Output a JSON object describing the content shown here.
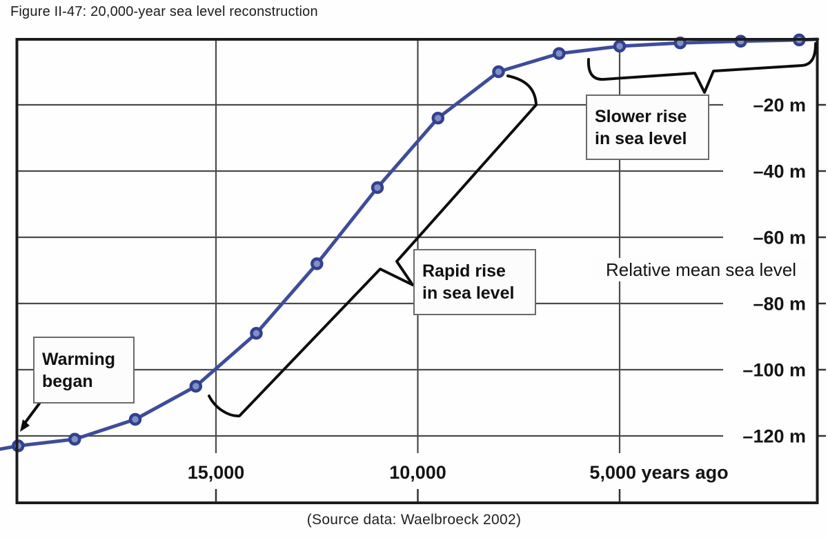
{
  "figure": {
    "title": "Figure II-47: 20,000-year sea level reconstruction",
    "caption": "(Source data: Waelbroeck 2002)"
  },
  "annotations": {
    "warming_began": {
      "line1": "Warming",
      "line2": "began"
    },
    "rapid_rise": {
      "line1": "Rapid rise",
      "line2": "in sea level"
    },
    "slower_rise": {
      "line1": "Slower rise",
      "line2": "in sea level"
    }
  },
  "chart_data": {
    "type": "line",
    "title": "20,000-year sea level reconstruction",
    "xlabel": "years ago",
    "ylabel": "Relative mean sea level (m)",
    "x_range_years_ago": [
      20000,
      0
    ],
    "ylim": [
      -130,
      0
    ],
    "grid": true,
    "legend": false,
    "x_axis": {
      "ticks": [
        15000,
        10000,
        5000
      ],
      "labels": [
        "15,000",
        "10,000",
        "5,000 years ago"
      ]
    },
    "y_axis": {
      "ticks": [
        -20,
        -40,
        -60,
        -80,
        -100,
        -120
      ],
      "labels": [
        "–20 m",
        "–40 m",
        "–60 m",
        "–80 m",
        "–100 m",
        "–120 m"
      ],
      "note": "Relative mean sea level"
    },
    "series": [
      {
        "name": "Relative mean sea level (Waelbroeck 2002)",
        "years_ago": [
          20350,
          19900,
          18500,
          17000,
          15500,
          14000,
          12500,
          11000,
          9500,
          8000,
          6500,
          5000,
          3500,
          2000,
          550,
          100
        ],
        "sea_level_m": [
          -124,
          -123,
          -121,
          -115,
          -105,
          -89,
          -68,
          -45,
          -24,
          -10,
          -4.5,
          -2.3,
          -1.3,
          -0.8,
          -0.4,
          -0.2
        ],
        "markers": [
          false,
          true,
          true,
          true,
          true,
          true,
          true,
          true,
          true,
          true,
          true,
          true,
          true,
          true,
          true,
          false
        ]
      }
    ],
    "colors": {
      "line": "#3e4c9a",
      "marker_fill": "#8090c8",
      "marker_stroke": "#32418d",
      "grid": "#4a4a4a",
      "frame": "#1c1c1c"
    }
  }
}
